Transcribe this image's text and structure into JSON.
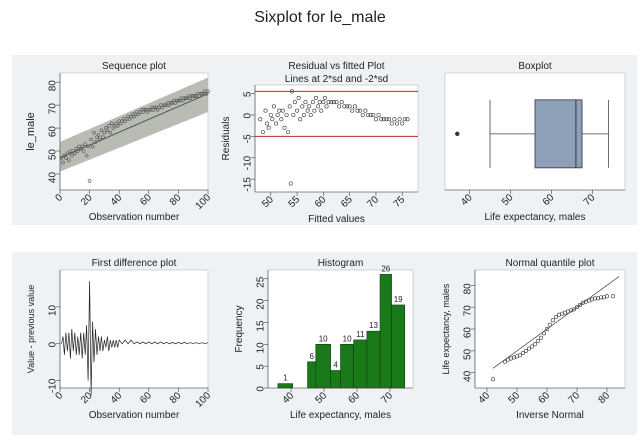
{
  "main_title": "Sixplot for le_male",
  "chart_data": [
    {
      "id": "sequence",
      "type": "scatter",
      "title": "Sequence plot",
      "xlabel": "Observation number",
      "ylabel": "le_male",
      "xlim": [
        0,
        100
      ],
      "ylim": [
        33,
        84
      ],
      "xticks": [
        0,
        20,
        40,
        60,
        80,
        100
      ],
      "yticks": [
        40,
        50,
        60,
        70,
        80
      ],
      "band": {
        "lower_start": 41,
        "lower_end": 67,
        "upper_start": 54,
        "upper_end": 82
      },
      "fit_line": {
        "start": 47,
        "end": 75
      },
      "points": [
        [
          1,
          47
        ],
        [
          2,
          45
        ],
        [
          3,
          48
        ],
        [
          4,
          47
        ],
        [
          5,
          49
        ],
        [
          6,
          46
        ],
        [
          7,
          50
        ],
        [
          8,
          48
        ],
        [
          9,
          50
        ],
        [
          10,
          49
        ],
        [
          11,
          51
        ],
        [
          12,
          50
        ],
        [
          13,
          52
        ],
        [
          14,
          51
        ],
        [
          15,
          52
        ],
        [
          16,
          50
        ],
        [
          17,
          53
        ],
        [
          18,
          48
        ],
        [
          19,
          52
        ],
        [
          20,
          37
        ],
        [
          21,
          55
        ],
        [
          22,
          52
        ],
        [
          23,
          58
        ],
        [
          24,
          54
        ],
        [
          25,
          56
        ],
        [
          26,
          57
        ],
        [
          27,
          55
        ],
        [
          28,
          59
        ],
        [
          29,
          56
        ],
        [
          30,
          58
        ],
        [
          31,
          60
        ],
        [
          32,
          59
        ],
        [
          33,
          61
        ],
        [
          34,
          58
        ],
        [
          35,
          62
        ],
        [
          36,
          60
        ],
        [
          37,
          61
        ],
        [
          38,
          62
        ],
        [
          39,
          61
        ],
        [
          40,
          63
        ],
        [
          41,
          62
        ],
        [
          42,
          63
        ],
        [
          43,
          64
        ],
        [
          44,
          63
        ],
        [
          45,
          64
        ],
        [
          46,
          65
        ],
        [
          47,
          64
        ],
        [
          48,
          65
        ],
        [
          49,
          66
        ],
        [
          50,
          65
        ],
        [
          51,
          66
        ],
        [
          52,
          67
        ],
        [
          53,
          66
        ],
        [
          54,
          67
        ],
        [
          55,
          68
        ],
        [
          56,
          67
        ],
        [
          57,
          68
        ],
        [
          58,
          68
        ],
        [
          59,
          67
        ],
        [
          60,
          68
        ],
        [
          61,
          68
        ],
        [
          62,
          69
        ],
        [
          63,
          68
        ],
        [
          64,
          69
        ],
        [
          65,
          69
        ],
        [
          66,
          68
        ],
        [
          67,
          69
        ],
        [
          68,
          70
        ],
        [
          69,
          69
        ],
        [
          70,
          70
        ],
        [
          71,
          70
        ],
        [
          72,
          70
        ],
        [
          73,
          71
        ],
        [
          74,
          70
        ],
        [
          75,
          71
        ],
        [
          76,
          71
        ],
        [
          77,
          72
        ],
        [
          78,
          71
        ],
        [
          79,
          72
        ],
        [
          80,
          72
        ],
        [
          81,
          72
        ],
        [
          82,
          73
        ],
        [
          83,
          72
        ],
        [
          84,
          73
        ],
        [
          85,
          73
        ],
        [
          86,
          73
        ],
        [
          87,
          74
        ],
        [
          88,
          73
        ],
        [
          89,
          74
        ],
        [
          90,
          74
        ],
        [
          91,
          74
        ],
        [
          92,
          74
        ],
        [
          93,
          75
        ],
        [
          94,
          74
        ],
        [
          95,
          75
        ],
        [
          96,
          75
        ],
        [
          97,
          75
        ],
        [
          98,
          76
        ],
        [
          99,
          75
        ],
        [
          100,
          76
        ]
      ]
    },
    {
      "id": "residual",
      "type": "scatter",
      "title": "Residual vs fitted Plot",
      "subtitle": "Lines at 2*sd and -2*sd",
      "xlabel": "Fitted values",
      "ylabel": "Residuals",
      "xlim": [
        47,
        78
      ],
      "ylim": [
        -18,
        7
      ],
      "xticks": [
        50,
        55,
        60,
        65,
        70,
        75
      ],
      "yticks": [
        -15,
        -10,
        -5,
        0,
        5
      ],
      "hlines": [
        5.5,
        -5
      ],
      "line_color": "#b03030",
      "points": [
        [
          48,
          -1
        ],
        [
          48.5,
          -4
        ],
        [
          49,
          1
        ],
        [
          49.3,
          -2
        ],
        [
          49.6,
          -3
        ],
        [
          50,
          0
        ],
        [
          50.3,
          -1
        ],
        [
          50.6,
          2
        ],
        [
          51,
          -2
        ],
        [
          51.3,
          0
        ],
        [
          51.6,
          1
        ],
        [
          52,
          -1
        ],
        [
          52.3,
          1
        ],
        [
          52.6,
          -3
        ],
        [
          53,
          0
        ],
        [
          53.3,
          -4
        ],
        [
          53.6,
          2
        ],
        [
          53.8,
          -16
        ],
        [
          54,
          5.5
        ],
        [
          54.3,
          0
        ],
        [
          54.6,
          3
        ],
        [
          55,
          1
        ],
        [
          55.3,
          4
        ],
        [
          55.6,
          -1
        ],
        [
          56,
          2
        ],
        [
          56.3,
          0
        ],
        [
          56.6,
          3
        ],
        [
          57,
          1
        ],
        [
          57.3,
          2
        ],
        [
          57.6,
          0
        ],
        [
          58,
          3
        ],
        [
          58.3,
          1
        ],
        [
          58.6,
          4
        ],
        [
          59,
          2
        ],
        [
          59.3,
          3
        ],
        [
          59.6,
          1
        ],
        [
          60,
          3
        ],
        [
          60.3,
          4
        ],
        [
          60.6,
          2
        ],
        [
          61,
          3
        ],
        [
          61.5,
          3
        ],
        [
          62,
          3
        ],
        [
          62.5,
          3
        ],
        [
          63,
          2
        ],
        [
          63.5,
          3
        ],
        [
          64,
          2
        ],
        [
          64.5,
          2
        ],
        [
          65,
          2
        ],
        [
          65.5,
          1
        ],
        [
          66,
          2
        ],
        [
          66.5,
          1
        ],
        [
          67,
          1
        ],
        [
          67.5,
          0
        ],
        [
          68,
          1
        ],
        [
          68.5,
          0
        ],
        [
          69,
          0
        ],
        [
          69.5,
          0
        ],
        [
          70,
          -1
        ],
        [
          70.5,
          0
        ],
        [
          71,
          -1
        ],
        [
          71.5,
          -1
        ],
        [
          72,
          -1
        ],
        [
          72.5,
          -1
        ],
        [
          73,
          -2
        ],
        [
          73.5,
          -1
        ],
        [
          74,
          -2
        ],
        [
          74.5,
          -1
        ],
        [
          75,
          -2
        ],
        [
          75.5,
          -1
        ],
        [
          76,
          -1
        ]
      ]
    },
    {
      "id": "boxplot",
      "type": "box",
      "title": "Boxplot",
      "xlabel": "Life expectancy, males",
      "xlim": [
        34,
        78
      ],
      "xticks": [
        40,
        50,
        60,
        70
      ],
      "whisker_low": 45,
      "q1": 56,
      "median": 66,
      "q3": 67.5,
      "whisker_high": 74,
      "outliers": [
        37
      ],
      "box_color": "#8da0b8"
    },
    {
      "id": "first_diff",
      "type": "line",
      "title": "First difference plot",
      "xlabel": "Observation number",
      "ylabel": "Value - previous value",
      "xlim": [
        0,
        100
      ],
      "ylim": [
        -12,
        20
      ],
      "xticks": [
        0,
        20,
        40,
        60,
        80,
        100
      ],
      "yticks": [
        -10,
        0,
        10
      ],
      "values": [
        [
          1,
          0
        ],
        [
          2,
          2
        ],
        [
          3,
          -3
        ],
        [
          4,
          3
        ],
        [
          5,
          -2
        ],
        [
          6,
          3
        ],
        [
          7,
          -4
        ],
        [
          8,
          4
        ],
        [
          9,
          -2
        ],
        [
          10,
          3
        ],
        [
          11,
          -3
        ],
        [
          12,
          2
        ],
        [
          13,
          -3
        ],
        [
          14,
          3
        ],
        [
          15,
          -4
        ],
        [
          16,
          3
        ],
        [
          17,
          -3
        ],
        [
          18,
          5
        ],
        [
          19,
          -10
        ],
        [
          20,
          17
        ],
        [
          21,
          -14
        ],
        [
          22,
          6
        ],
        [
          23,
          -5
        ],
        [
          24,
          4
        ],
        [
          25,
          -3
        ],
        [
          26,
          2
        ],
        [
          27,
          -2
        ],
        [
          28,
          2
        ],
        [
          29,
          -2
        ],
        [
          30,
          1
        ],
        [
          31,
          -1
        ],
        [
          32,
          2
        ],
        [
          33,
          -2
        ],
        [
          34,
          1
        ],
        [
          35,
          -1
        ],
        [
          36,
          1
        ],
        [
          37,
          -1
        ],
        [
          38,
          1
        ],
        [
          39,
          -1
        ],
        [
          40,
          1
        ],
        [
          42,
          0
        ],
        [
          44,
          1
        ],
        [
          46,
          0
        ],
        [
          48,
          1
        ],
        [
          50,
          0
        ],
        [
          52,
          0.5
        ],
        [
          54,
          0
        ],
        [
          56,
          0.5
        ],
        [
          58,
          0
        ],
        [
          60,
          0.5
        ],
        [
          62,
          0
        ],
        [
          64,
          0.5
        ],
        [
          66,
          0
        ],
        [
          68,
          0.5
        ],
        [
          70,
          0
        ],
        [
          72,
          0.4
        ],
        [
          74,
          0
        ],
        [
          76,
          0.4
        ],
        [
          78,
          0
        ],
        [
          80,
          0.4
        ],
        [
          82,
          0
        ],
        [
          84,
          0.4
        ],
        [
          86,
          0
        ],
        [
          88,
          0.3
        ],
        [
          90,
          0
        ],
        [
          92,
          0.3
        ],
        [
          94,
          0
        ],
        [
          96,
          0.3
        ],
        [
          98,
          0
        ],
        [
          100,
          0.3
        ]
      ]
    },
    {
      "id": "histogram",
      "type": "bar",
      "title": "Histogram",
      "xlabel": "Life expectancy, males",
      "ylabel": "Frequency",
      "xlim": [
        33,
        77
      ],
      "ylim": [
        0,
        27
      ],
      "xticks": [
        40,
        50,
        60,
        70
      ],
      "yticks": [
        0,
        5,
        10,
        15,
        20,
        25
      ],
      "bar_color": "#1a7a1a",
      "bins": [
        {
          "start": 36,
          "end": 40.5,
          "count": 1
        },
        {
          "start": 45,
          "end": 47.5,
          "count": 6
        },
        {
          "start": 47.5,
          "end": 52,
          "count": 10
        },
        {
          "start": 52,
          "end": 55,
          "count": 4
        },
        {
          "start": 55,
          "end": 59,
          "count": 10
        },
        {
          "start": 59,
          "end": 63,
          "count": 11
        },
        {
          "start": 63,
          "end": 67,
          "count": 13
        },
        {
          "start": 67,
          "end": 70.5,
          "count": 26
        },
        {
          "start": 70.5,
          "end": 74.5,
          "count": 19
        }
      ]
    },
    {
      "id": "normal_quantile",
      "type": "scatter",
      "title": "Normal quantile plot",
      "xlabel": "Inverse Normal",
      "ylabel": "Life expectancy, males",
      "xlim": [
        36,
        86
      ],
      "ylim": [
        33,
        87
      ],
      "xticks": [
        40,
        50,
        60,
        70,
        80
      ],
      "yticks": [
        40,
        50,
        60,
        70,
        80
      ],
      "reference_line": [
        [
          42,
          42
        ],
        [
          84,
          84
        ]
      ],
      "points": [
        [
          42,
          37
        ],
        [
          46,
          45
        ],
        [
          47,
          46
        ],
        [
          48,
          46.5
        ],
        [
          49,
          47
        ],
        [
          50,
          47.5
        ],
        [
          51,
          48
        ],
        [
          52,
          49
        ],
        [
          53,
          50
        ],
        [
          54,
          51
        ],
        [
          55,
          52
        ],
        [
          56,
          53
        ],
        [
          57,
          54.5
        ],
        [
          58,
          56
        ],
        [
          59,
          58
        ],
        [
          60,
          60
        ],
        [
          61,
          62
        ],
        [
          62,
          64
        ],
        [
          63,
          65.5
        ],
        [
          64,
          66.5
        ],
        [
          65,
          67
        ],
        [
          66,
          67.5
        ],
        [
          67,
          68
        ],
        [
          68,
          68.5
        ],
        [
          69,
          69
        ],
        [
          70,
          70
        ],
        [
          71,
          71
        ],
        [
          72,
          72
        ],
        [
          73,
          72.5
        ],
        [
          74,
          73
        ],
        [
          75,
          73.5
        ],
        [
          76,
          74
        ],
        [
          77,
          74
        ],
        [
          78,
          74.5
        ],
        [
          79,
          74.5
        ],
        [
          80,
          75
        ],
        [
          82,
          75
        ]
      ]
    }
  ]
}
